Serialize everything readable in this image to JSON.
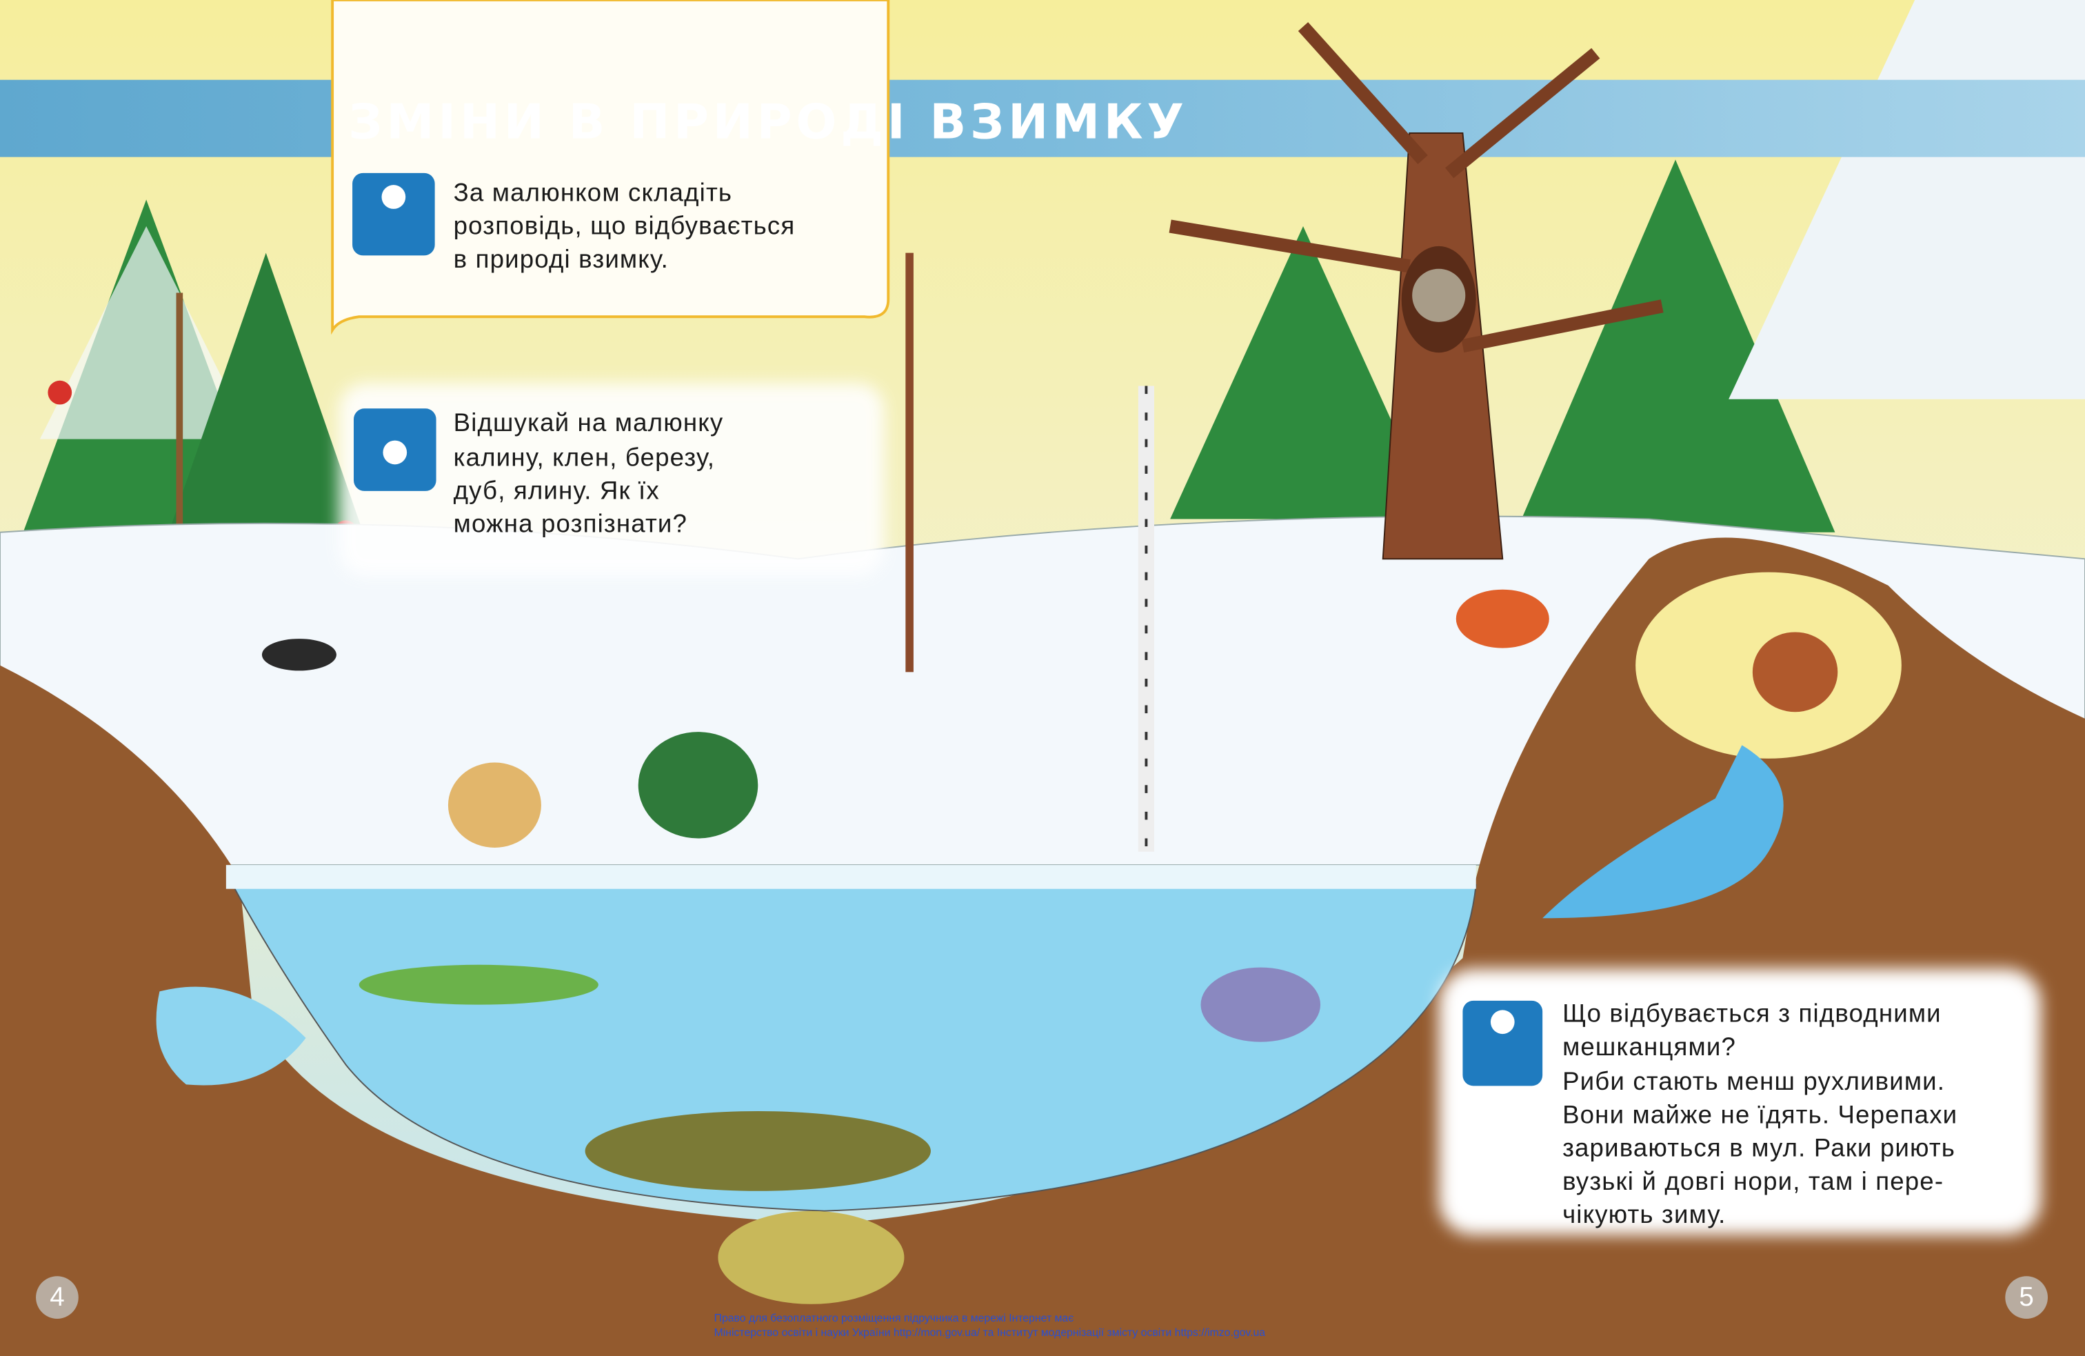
{
  "header": {
    "title": "ЗМІНИ В ПРИРОДІ ВЗИМКУ"
  },
  "task1": {
    "lines": [
      "За малюнком складіть",
      "розповідь, що відбувається",
      "в природі взимку."
    ]
  },
  "task2": {
    "lines": [
      "Відшукай на малюнку",
      "калину, клен, березу,",
      "дуб, ялину. Як їх",
      "можна розпізнати?"
    ]
  },
  "task3": {
    "lines": [
      "Що відбувається з підводними",
      "мешканцями?",
      "Риби стають менш рухливими.",
      "Вони майже не їдять. Черепахи",
      "зариваються в мул. Раки риють",
      "вузькі й довгі нори, там і пере-",
      "чікують зиму."
    ]
  },
  "page_numbers": [
    "4",
    "5"
  ],
  "footer": {
    "lines": [
      "Право для безоплатного розміщення підручника в мережі Інтернет має",
      "Міністерство освіти і науки України http://mon.gov.ua/ та Інститут модернізації змісту освіти https://imzo.gov.ua"
    ]
  }
}
